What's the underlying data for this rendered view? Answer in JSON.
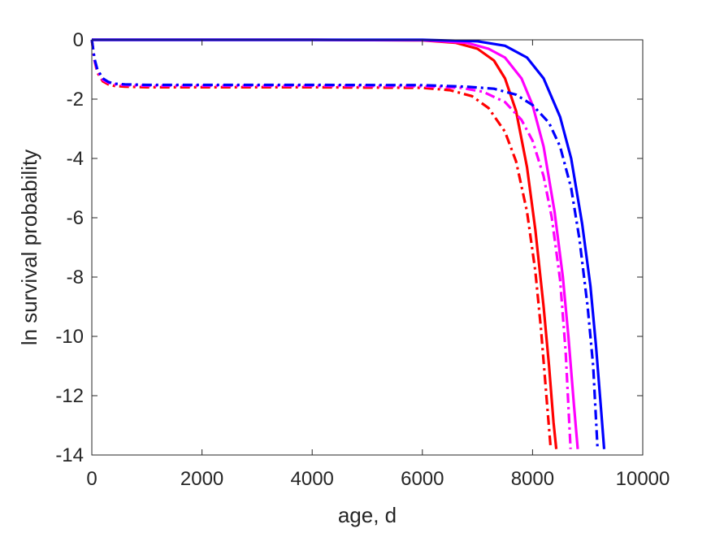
{
  "chart_data": {
    "type": "line",
    "title": "",
    "xlabel": "age, d",
    "ylabel": "ln survival probability",
    "xlim": [
      0,
      10000
    ],
    "ylim": [
      -14,
      0
    ],
    "xticks": [
      0,
      2000,
      4000,
      6000,
      8000,
      10000
    ],
    "xtick_labels": [
      "0",
      "2000",
      "4000",
      "6000",
      "8000",
      "10000"
    ],
    "yticks": [
      0,
      -2,
      -4,
      -6,
      -8,
      -10,
      -12,
      -14
    ],
    "ytick_labels": [
      "0",
      "-2",
      "-4",
      "-6",
      "-8",
      "-10",
      "-12",
      "-14"
    ],
    "grid": false,
    "legend": "none",
    "series": [
      {
        "color": "#ff0000",
        "style": "solid",
        "x": [
          0,
          2000,
          4000,
          6000,
          6600,
          7000,
          7300,
          7500,
          7700,
          7900,
          8050,
          8200,
          8300,
          8380,
          8430
        ],
        "y": [
          0,
          0,
          0,
          -0.02,
          -0.1,
          -0.3,
          -0.7,
          -1.3,
          -2.4,
          -4.3,
          -6.4,
          -9.0,
          -11.0,
          -12.9,
          -13.8
        ]
      },
      {
        "color": "#ff00ff",
        "style": "solid",
        "x": [
          0,
          2000,
          4000,
          6000,
          6800,
          7200,
          7500,
          7800,
          8000,
          8200,
          8400,
          8550,
          8650,
          8750,
          8820
        ],
        "y": [
          0,
          0,
          0,
          -0.01,
          -0.1,
          -0.3,
          -0.6,
          -1.3,
          -2.2,
          -3.6,
          -5.8,
          -8.0,
          -10.0,
          -12.3,
          -13.8
        ]
      },
      {
        "color": "#0000ff",
        "style": "solid",
        "x": [
          0,
          2000,
          4000,
          6000,
          7000,
          7500,
          7900,
          8200,
          8500,
          8700,
          8900,
          9050,
          9150,
          9250,
          9300
        ],
        "y": [
          0,
          0,
          0,
          0,
          -0.05,
          -0.2,
          -0.6,
          -1.3,
          -2.6,
          -4.0,
          -6.2,
          -8.3,
          -10.3,
          -12.6,
          -13.8
        ]
      },
      {
        "color": "#ff0000",
        "style": "dashdot",
        "x": [
          0,
          50,
          100,
          200,
          300,
          400,
          600,
          1000,
          2000,
          4000,
          6000,
          6500,
          6900,
          7200,
          7500,
          7700,
          7900,
          8050,
          8150,
          8250,
          8330
        ],
        "y": [
          0,
          -0.7,
          -1.1,
          -1.4,
          -1.5,
          -1.55,
          -1.58,
          -1.6,
          -1.6,
          -1.6,
          -1.62,
          -1.7,
          -1.9,
          -2.3,
          -3.1,
          -4.1,
          -5.8,
          -7.8,
          -9.7,
          -12.0,
          -13.8
        ]
      },
      {
        "color": "#ff00ff",
        "style": "dashdot",
        "x": [
          0,
          50,
          100,
          200,
          300,
          400,
          600,
          1000,
          2000,
          4000,
          6000,
          6700,
          7100,
          7500,
          7800,
          8000,
          8200,
          8350,
          8500,
          8600,
          8690
        ],
        "y": [
          0,
          -0.7,
          -1.05,
          -1.35,
          -1.45,
          -1.5,
          -1.53,
          -1.55,
          -1.55,
          -1.55,
          -1.57,
          -1.62,
          -1.75,
          -2.1,
          -2.7,
          -3.4,
          -4.6,
          -6.0,
          -8.1,
          -10.5,
          -13.8
        ]
      },
      {
        "color": "#0000ff",
        "style": "dashdot",
        "x": [
          0,
          50,
          100,
          200,
          300,
          400,
          600,
          1000,
          2000,
          4000,
          6000,
          6800,
          7300,
          7700,
          8000,
          8300,
          8500,
          8700,
          8850,
          9000,
          9100,
          9180
        ],
        "y": [
          0,
          -0.65,
          -1.0,
          -1.3,
          -1.42,
          -1.48,
          -1.5,
          -1.52,
          -1.52,
          -1.52,
          -1.53,
          -1.58,
          -1.65,
          -1.85,
          -2.2,
          -2.8,
          -3.6,
          -5.0,
          -6.7,
          -9.0,
          -11.0,
          -13.8
        ]
      }
    ]
  }
}
